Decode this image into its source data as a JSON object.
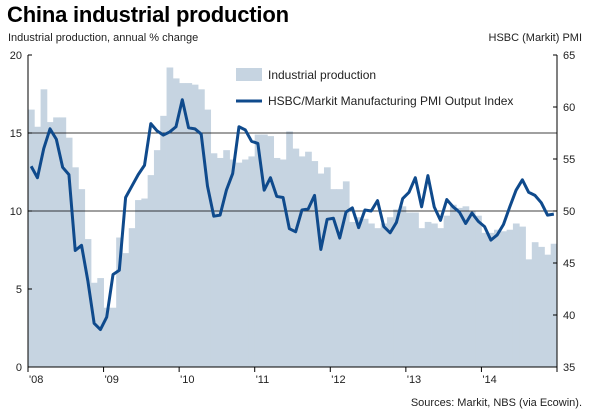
{
  "page": {
    "title": "China industrial production",
    "left_axis_label": "Industrial production, annual % change",
    "right_axis_label": "HSBC (Markit) PMI",
    "source": "Sources: Markit, NBS (via Ecowin)."
  },
  "colors": {
    "bars": "#c6d4e1",
    "line": "#0f4a8c",
    "grid": "#000000"
  },
  "chart_data": {
    "type": "bar+line",
    "title": "China industrial production",
    "xlabel": "",
    "ylabel": "Industrial production, annual % change",
    "y2label": "HSBC (Markit) PMI",
    "ylim": [
      0,
      20
    ],
    "y2lim": [
      35,
      65
    ],
    "yticks": [
      0,
      5,
      10,
      15,
      20
    ],
    "y2ticks": [
      35,
      40,
      45,
      50,
      55,
      60,
      65
    ],
    "xticks": [
      "'08",
      "'09",
      "'10",
      "'11",
      "'12",
      "'13",
      "'14"
    ],
    "x_start": "2008-01",
    "x_end": "2014-12",
    "gridlines_left": [
      10,
      15
    ],
    "legend": {
      "position": "top-right",
      "entries": [
        "Industrial production",
        "HSBC/Markit Manufacturing PMI Output Index"
      ]
    },
    "series": [
      {
        "name": "Industrial production",
        "kind": "bar",
        "axis": "left",
        "values": [
          16.5,
          15.4,
          17.8,
          15.7,
          16.0,
          16.0,
          14.7,
          12.8,
          11.4,
          8.2,
          5.4,
          5.7,
          3.8,
          3.8,
          8.3,
          7.3,
          8.9,
          10.7,
          10.8,
          12.3,
          13.9,
          16.1,
          19.2,
          18.5,
          18.2,
          18.2,
          18.1,
          17.8,
          16.5,
          13.7,
          13.4,
          13.9,
          13.3,
          13.1,
          13.3,
          13.5,
          14.9,
          14.9,
          14.8,
          13.4,
          13.3,
          15.1,
          14.0,
          13.5,
          13.8,
          13.2,
          12.4,
          12.8,
          11.4,
          11.4,
          11.9,
          9.3,
          9.6,
          9.5,
          9.2,
          8.9,
          9.2,
          9.6,
          10.1,
          10.3,
          9.9,
          9.9,
          8.9,
          9.3,
          9.2,
          8.9,
          9.7,
          10.4,
          10.2,
          10.3,
          10.0,
          9.7,
          8.6,
          8.6,
          8.8,
          8.7,
          8.8,
          9.2,
          9.0,
          6.9,
          8.0,
          7.7,
          7.2,
          7.9
        ]
      },
      {
        "name": "HSBC/Markit Manufacturing PMI Output Index",
        "kind": "line",
        "axis": "right",
        "values": [
          54.3,
          53.2,
          56.0,
          57.9,
          56.9,
          54.2,
          53.5,
          46.2,
          46.7,
          43.3,
          39.2,
          38.6,
          39.8,
          43.9,
          44.3,
          51.3,
          52.4,
          53.5,
          54.4,
          58.4,
          57.7,
          57.3,
          57.6,
          58.1,
          60.7,
          58.0,
          57.9,
          57.4,
          52.4,
          49.5,
          49.6,
          52.0,
          53.6,
          58.1,
          57.8,
          56.7,
          56.5,
          52.0,
          53.2,
          51.4,
          51.3,
          48.3,
          48.0,
          50.1,
          50.2,
          51.5,
          46.3,
          49.2,
          49.3,
          47.4,
          49.9,
          50.3,
          48.4,
          50.1,
          50.0,
          51.0,
          48.5,
          47.9,
          48.9,
          51.2,
          51.8,
          53.2,
          50.4,
          53.4,
          50.4,
          49.1,
          51.1,
          50.4,
          49.9,
          48.8,
          49.8,
          49.0,
          48.5,
          47.2,
          47.7,
          48.7,
          50.4,
          52.0,
          53.0,
          51.8,
          51.5,
          50.8,
          49.6,
          49.7
        ]
      }
    ]
  }
}
